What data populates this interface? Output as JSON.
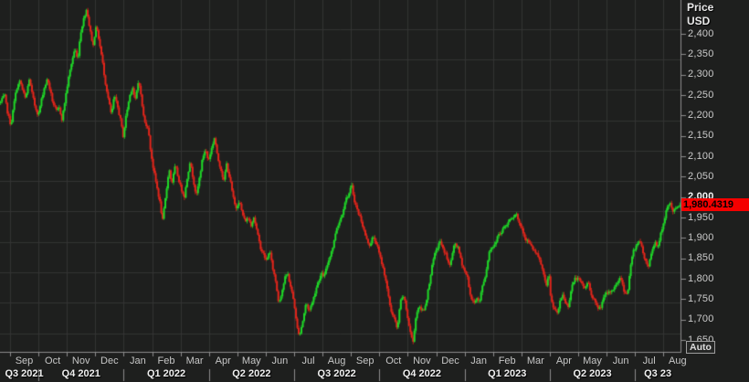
{
  "price_axis": {
    "title_line1": "Price",
    "title_line2": "USD",
    "auto_button_label": "Auto",
    "ticks": [
      {
        "v": 2400,
        "l": "2,400"
      },
      {
        "v": 2350,
        "l": "2,350"
      },
      {
        "v": 2300,
        "l": "2,300"
      },
      {
        "v": 2250,
        "l": "2,250"
      },
      {
        "v": 2200,
        "l": "2,200"
      },
      {
        "v": 2150,
        "l": "2,150"
      },
      {
        "v": 2100,
        "l": "2,100"
      },
      {
        "v": 2050,
        "l": "2,050"
      },
      {
        "v": 2000,
        "l": "2,000"
      },
      {
        "v": 1950,
        "l": "1,950"
      },
      {
        "v": 1900,
        "l": "1,900"
      },
      {
        "v": 1850,
        "l": "1,850"
      },
      {
        "v": 1800,
        "l": "1,800"
      },
      {
        "v": 1750,
        "l": "1,750"
      },
      {
        "v": 1700,
        "l": "1,700"
      },
      {
        "v": 1650,
        "l": "1,650"
      }
    ],
    "emphasized_tick": 2000,
    "last_price_label": "1,980.4319",
    "last_price": 1980.4319
  },
  "time_axis": {
    "months": [
      "Sep",
      "Oct",
      "Nov",
      "Dec",
      "Jan",
      "Feb",
      "Mar",
      "Apr",
      "May",
      "Jun",
      "Jul",
      "Aug",
      "Sep",
      "Oct",
      "Nov",
      "Dec",
      "Jan",
      "Feb",
      "Mar",
      "Apr",
      "May",
      "Jun",
      "Jul",
      "Aug"
    ],
    "quarters": [
      {
        "label": "Q3 2021",
        "start_month": 0,
        "end_month": 1
      },
      {
        "label": "Q4 2021",
        "start_month": 1,
        "end_month": 4
      },
      {
        "label": "Q1 2022",
        "start_month": 4,
        "end_month": 7
      },
      {
        "label": "Q2 2022",
        "start_month": 7,
        "end_month": 10
      },
      {
        "label": "Q3 2022",
        "start_month": 10,
        "end_month": 13
      },
      {
        "label": "Q4 2022",
        "start_month": 13,
        "end_month": 16
      },
      {
        "label": "Q1 2023",
        "start_month": 16,
        "end_month": 19
      },
      {
        "label": "Q2 2023",
        "start_month": 19,
        "end_month": 22
      },
      {
        "label": "Q3 23",
        "start_month": 22,
        "end_month": 24
      }
    ]
  },
  "chart_data": {
    "type": "candlestick",
    "title": "Price USD",
    "period": "daily",
    "x_range": "late Aug 2021 - mid Aug 2023",
    "ylim": [
      1621,
      2483
    ],
    "y_tick_step": 50,
    "last_close": 1980.4319,
    "candle_count": 500,
    "anchors_comment": "close-price path read off the chart; pairs of [x_pixel 0-745 (time), price USD]",
    "anchors": [
      [
        0,
        2230
      ],
      [
        5,
        2250
      ],
      [
        8,
        2210
      ],
      [
        12,
        2175
      ],
      [
        15,
        2225
      ],
      [
        18,
        2265
      ],
      [
        22,
        2285
      ],
      [
        25,
        2260
      ],
      [
        28,
        2240
      ],
      [
        32,
        2290
      ],
      [
        35,
        2255
      ],
      [
        38,
        2225
      ],
      [
        42,
        2200
      ],
      [
        45,
        2235
      ],
      [
        48,
        2265
      ],
      [
        52,
        2290
      ],
      [
        55,
        2260
      ],
      [
        58,
        2230
      ],
      [
        62,
        2210
      ],
      [
        65,
        2218
      ],
      [
        68,
        2190
      ],
      [
        72,
        2250
      ],
      [
        75,
        2290
      ],
      [
        78,
        2325
      ],
      [
        82,
        2365
      ],
      [
        85,
        2335
      ],
      [
        88,
        2400
      ],
      [
        92,
        2440
      ],
      [
        95,
        2462
      ],
      [
        98,
        2415
      ],
      [
        102,
        2370
      ],
      [
        105,
        2420
      ],
      [
        108,
        2390
      ],
      [
        112,
        2335
      ],
      [
        115,
        2285
      ],
      [
        118,
        2248
      ],
      [
        122,
        2200
      ],
      [
        125,
        2248
      ],
      [
        128,
        2228
      ],
      [
        132,
        2188
      ],
      [
        135,
        2148
      ],
      [
        138,
        2200
      ],
      [
        142,
        2248
      ],
      [
        145,
        2272
      ],
      [
        148,
        2235
      ],
      [
        152,
        2290
      ],
      [
        155,
        2235
      ],
      [
        158,
        2185
      ],
      [
        162,
        2172
      ],
      [
        165,
        2112
      ],
      [
        168,
        2068
      ],
      [
        172,
        2022
      ],
      [
        175,
        1988
      ],
      [
        178,
        1942
      ],
      [
        182,
        2012
      ],
      [
        185,
        2072
      ],
      [
        188,
        2032
      ],
      [
        192,
        2078
      ],
      [
        195,
        2048
      ],
      [
        198,
        2022
      ],
      [
        202,
        2002
      ],
      [
        205,
        2048
      ],
      [
        208,
        2088
      ],
      [
        212,
        2038
      ],
      [
        215,
        2002
      ],
      [
        218,
        2042
      ],
      [
        222,
        2098
      ],
      [
        225,
        2118
      ],
      [
        228,
        2088
      ],
      [
        232,
        2122
      ],
      [
        235,
        2148
      ],
      [
        238,
        2098
      ],
      [
        242,
        2068
      ],
      [
        245,
        2038
      ],
      [
        248,
        2082
      ],
      [
        252,
        2042
      ],
      [
        255,
        2002
      ],
      [
        258,
        1972
      ],
      [
        262,
        1992
      ],
      [
        265,
        1962
      ],
      [
        268,
        1942
      ],
      [
        272,
        1948
      ],
      [
        275,
        1932
      ],
      [
        278,
        1952
      ],
      [
        282,
        1908
      ],
      [
        285,
        1878
      ],
      [
        288,
        1862
      ],
      [
        292,
        1842
      ],
      [
        295,
        1872
      ],
      [
        298,
        1832
      ],
      [
        302,
        1792
      ],
      [
        305,
        1742
      ],
      [
        308,
        1762
      ],
      [
        312,
        1802
      ],
      [
        315,
        1812
      ],
      [
        318,
        1782
      ],
      [
        322,
        1742
      ],
      [
        325,
        1682
      ],
      [
        328,
        1662
      ],
      [
        332,
        1702
      ],
      [
        335,
        1742
      ],
      [
        338,
        1722
      ],
      [
        342,
        1742
      ],
      [
        345,
        1768
      ],
      [
        348,
        1792
      ],
      [
        352,
        1812
      ],
      [
        355,
        1806
      ],
      [
        358,
        1832
      ],
      [
        362,
        1862
      ],
      [
        365,
        1882
      ],
      [
        368,
        1922
      ],
      [
        372,
        1942
      ],
      [
        375,
        1962
      ],
      [
        378,
        1992
      ],
      [
        382,
        2008
      ],
      [
        385,
        2028
      ],
      [
        388,
        1992
      ],
      [
        392,
        1962
      ],
      [
        395,
        1948
      ],
      [
        398,
        1922
      ],
      [
        402,
        1892
      ],
      [
        405,
        1882
      ],
      [
        408,
        1902
      ],
      [
        412,
        1888
      ],
      [
        415,
        1862
      ],
      [
        418,
        1838
      ],
      [
        422,
        1802
      ],
      [
        425,
        1758
      ],
      [
        428,
        1722
      ],
      [
        432,
        1702
      ],
      [
        435,
        1672
      ],
      [
        438,
        1742
      ],
      [
        442,
        1758
      ],
      [
        445,
        1722
      ],
      [
        448,
        1682
      ],
      [
        452,
        1642
      ],
      [
        455,
        1702
      ],
      [
        458,
        1732
      ],
      [
        462,
        1722
      ],
      [
        465,
        1728
      ],
      [
        468,
        1762
      ],
      [
        472,
        1818
      ],
      [
        475,
        1852
      ],
      [
        478,
        1872
      ],
      [
        482,
        1892
      ],
      [
        485,
        1872
      ],
      [
        488,
        1862
      ],
      [
        492,
        1828
      ],
      [
        495,
        1858
      ],
      [
        498,
        1888
      ],
      [
        502,
        1872
      ],
      [
        505,
        1842
      ],
      [
        508,
        1822
      ],
      [
        512,
        1802
      ],
      [
        515,
        1758
      ],
      [
        518,
        1742
      ],
      [
        522,
        1752
      ],
      [
        525,
        1742
      ],
      [
        528,
        1782
      ],
      [
        532,
        1812
      ],
      [
        535,
        1862
      ],
      [
        538,
        1878
      ],
      [
        542,
        1882
      ],
      [
        545,
        1908
      ],
      [
        548,
        1912
      ],
      [
        552,
        1928
      ],
      [
        555,
        1932
      ],
      [
        558,
        1948
      ],
      [
        562,
        1952
      ],
      [
        565,
        1962
      ],
      [
        568,
        1938
      ],
      [
        572,
        1922
      ],
      [
        575,
        1898
      ],
      [
        578,
        1892
      ],
      [
        582,
        1878
      ],
      [
        585,
        1868
      ],
      [
        588,
        1858
      ],
      [
        592,
        1838
      ],
      [
        595,
        1812
      ],
      [
        598,
        1778
      ],
      [
        601,
        1815
      ],
      [
        603,
        1748
      ],
      [
        606,
        1732
      ],
      [
        610,
        1712
      ],
      [
        613,
        1742
      ],
      [
        616,
        1762
      ],
      [
        619,
        1742
      ],
      [
        622,
        1732
      ],
      [
        626,
        1782
      ],
      [
        630,
        1802
      ],
      [
        634,
        1797
      ],
      [
        637,
        1787
      ],
      [
        640,
        1777
      ],
      [
        644,
        1792
      ],
      [
        647,
        1762
      ],
      [
        650,
        1752
      ],
      [
        653,
        1732
      ],
      [
        657,
        1727
      ],
      [
        660,
        1747
      ],
      [
        663,
        1762
      ],
      [
        667,
        1767
      ],
      [
        670,
        1772
      ],
      [
        674,
        1782
      ],
      [
        677,
        1797
      ],
      [
        680,
        1802
      ],
      [
        683,
        1772
      ],
      [
        687,
        1762
      ],
      [
        690,
        1822
      ],
      [
        693,
        1867
      ],
      [
        697,
        1882
      ],
      [
        700,
        1897
      ],
      [
        703,
        1872
      ],
      [
        707,
        1842
      ],
      [
        710,
        1832
      ],
      [
        713,
        1862
      ],
      [
        717,
        1892
      ],
      [
        720,
        1877
      ],
      [
        723,
        1907
      ],
      [
        727,
        1937
      ],
      [
        730,
        1972
      ],
      [
        733,
        1988
      ],
      [
        737,
        1966
      ],
      [
        740,
        1970
      ],
      [
        744,
        1980.43
      ]
    ],
    "colors": {
      "background": "#1e1f1e",
      "grid": "#333433",
      "axis_line": "#8c8c8c",
      "candle_up": "#1fd928",
      "candle_down": "#e2251b",
      "last_price_tag_bg": "#f40000",
      "last_price_tag_text": "#000000"
    },
    "legend_position": "none",
    "grid": true
  }
}
